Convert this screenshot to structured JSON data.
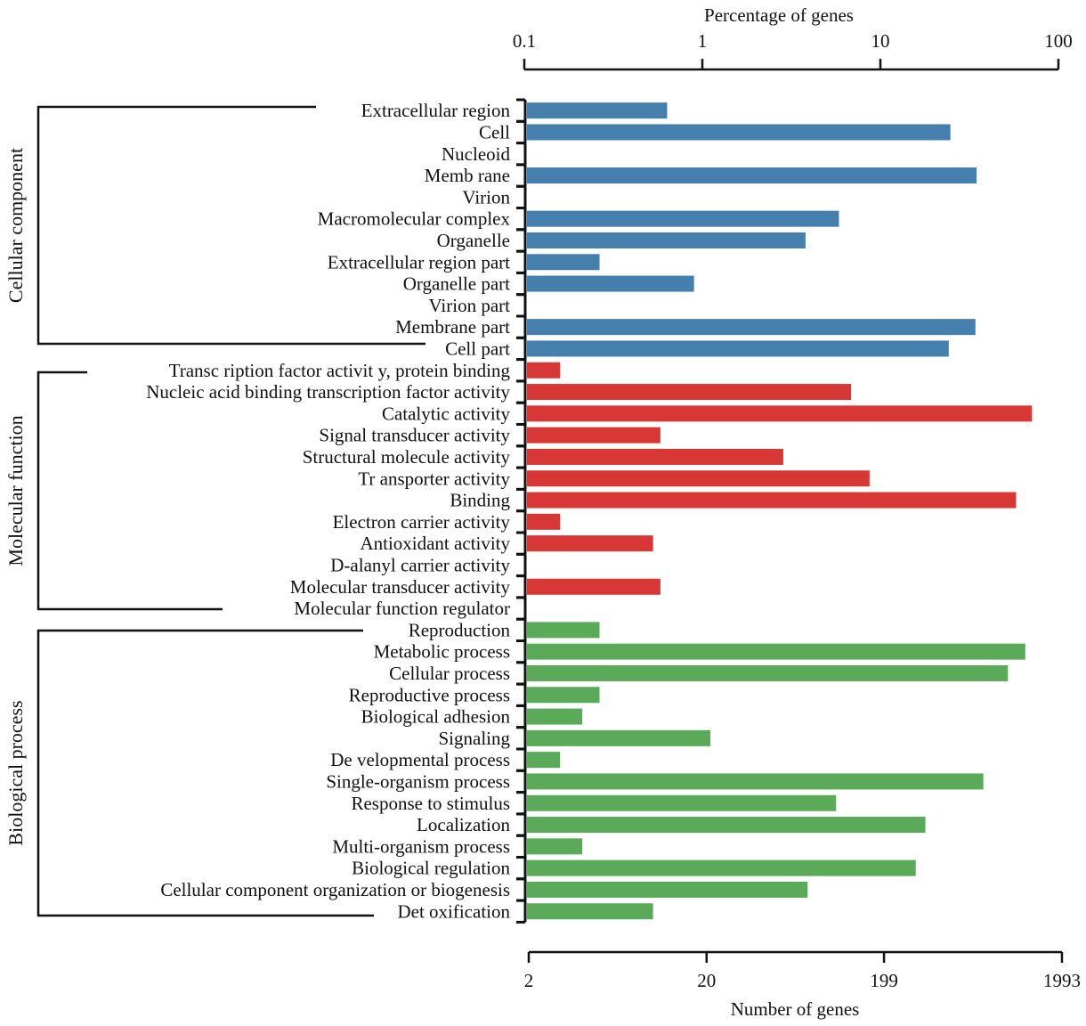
{
  "chart_data": {
    "type": "bar",
    "orientation": "horizontal",
    "scale": "log",
    "top_axis": {
      "label": "Percentage of genes",
      "ticks": [
        0.1,
        1,
        10,
        100
      ],
      "tick_labels": [
        "0.1",
        "1",
        "10",
        "100"
      ],
      "range": [
        0.1,
        100
      ]
    },
    "bottom_axis": {
      "label": "Number of genes",
      "ticks": [
        2,
        20,
        199,
        1993
      ],
      "tick_labels": [
        "2",
        "20",
        "199",
        "1993"
      ],
      "range": [
        2,
        1993
      ]
    },
    "grid": false,
    "groups": [
      {
        "name": "Cellular component",
        "color": "#457fae",
        "categories": [
          {
            "label": "Extracellular region",
            "genes": 12
          },
          {
            "label": "Cell",
            "genes": 470
          },
          {
            "label": "Nucleoid",
            "genes": 0
          },
          {
            "label": "Memb rane",
            "genes": 660
          },
          {
            "label": "Virion",
            "genes": 0
          },
          {
            "label": "Macromolecular complex",
            "genes": 111
          },
          {
            "label": "Organelle",
            "genes": 72
          },
          {
            "label": "Extracellular region part",
            "genes": 5
          },
          {
            "label": "Organelle part",
            "genes": 17
          },
          {
            "label": "Virion part",
            "genes": 0
          },
          {
            "label": "Membrane part",
            "genes": 650
          },
          {
            "label": "Cell part",
            "genes": 460
          }
        ]
      },
      {
        "name": "Molecular function",
        "color": "#d73835",
        "categories": [
          {
            "label": "Transc ription factor activit y, protein binding",
            "genes": 3
          },
          {
            "label": "Nucleic acid binding transcription factor activity",
            "genes": 130
          },
          {
            "label": "Catalytic activity",
            "genes": 1350
          },
          {
            "label": "Signal transducer activity",
            "genes": 11
          },
          {
            "label": "Structural molecule activity",
            "genes": 54
          },
          {
            "label": "Tr ansporter activity",
            "genes": 165
          },
          {
            "label": "Binding",
            "genes": 1100
          },
          {
            "label": "Electron carrier activity",
            "genes": 3
          },
          {
            "label": "Antioxidant activity",
            "genes": 10
          },
          {
            "label": "D-alanyl carrier activity",
            "genes": 0
          },
          {
            "label": "Molecular transducer activity",
            "genes": 11
          },
          {
            "label": "Molecular function regulator",
            "genes": 0
          }
        ]
      },
      {
        "name": "Biological process",
        "color": "#5aaa5a",
        "categories": [
          {
            "label": "Reproduction",
            "genes": 5
          },
          {
            "label": "Metabolic process",
            "genes": 1240
          },
          {
            "label": "Cellular process",
            "genes": 990
          },
          {
            "label": "Reproductive process",
            "genes": 5
          },
          {
            "label": "Biological adhesion",
            "genes": 4
          },
          {
            "label": "Signaling",
            "genes": 21
          },
          {
            "label": "De velopmental process",
            "genes": 3
          },
          {
            "label": "Single-organism process",
            "genes": 720
          },
          {
            "label": "Response to stimulus",
            "genes": 107
          },
          {
            "label": "Localization",
            "genes": 340
          },
          {
            "label": "Multi-organism process",
            "genes": 4
          },
          {
            "label": "Biological regulation",
            "genes": 300
          },
          {
            "label": "Cellular component organization or biogenesis",
            "genes": 74
          },
          {
            "label": "Det oxification",
            "genes": 10
          }
        ]
      }
    ]
  }
}
